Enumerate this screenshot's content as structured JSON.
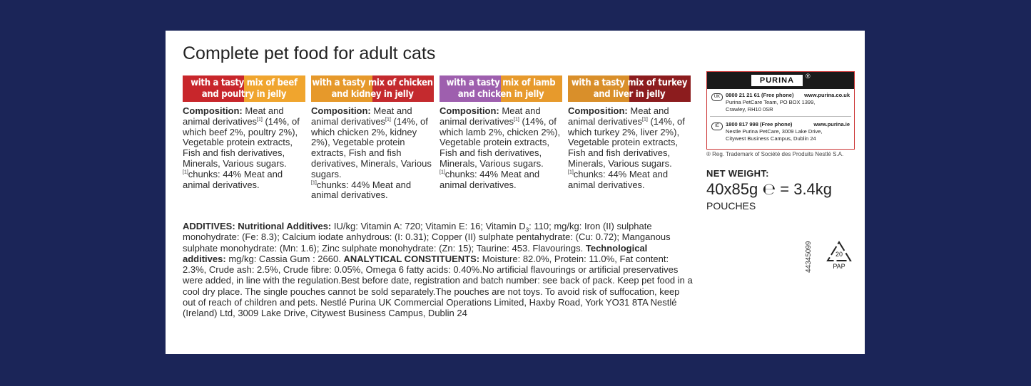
{
  "title": "Complete pet food for adult cats",
  "variants": [
    {
      "banner": [
        "with a tasty mix of beef",
        "and poultry in jelly"
      ],
      "label": "Composition:",
      "text": "Meat and animal derivatives",
      "note": "[1]",
      "detail": "(14%, of which beef 2%, poultry 2%), Vegetable protein extracts, Fish and fish derivatives, Minerals, Various sugars.",
      "chunks": "chunks: 44% Meat and animal derivatives."
    },
    {
      "banner": [
        "with a tasty mix of chicken",
        "and kidney in jelly"
      ],
      "label": "Composition:",
      "text": "Meat and animal derivatives",
      "note": "[1]",
      "detail": "(14%, of which chicken 2%, kidney 2%), Vegetable protein extracts, Fish and fish derivatives, Minerals, Various sugars.",
      "chunks": "chunks: 44% Meat and animal derivatives."
    },
    {
      "banner": [
        "with a tasty mix of lamb",
        "and chicken in jelly"
      ],
      "label": "Composition:",
      "text": "Meat and animal derivatives",
      "note": "[1]",
      "detail": "(14%, of which lamb 2%, chicken 2%), Vegetable protein extracts, Fish and fish derivatives, Minerals, Various sugars.",
      "chunks": "chunks: 44% Meat and animal derivatives."
    },
    {
      "banner": [
        "with a tasty mix of turkey",
        "and liver in jelly"
      ],
      "label": "Composition:",
      "text": "Meat and animal derivatives",
      "note": "[1]",
      "detail": "(14%, of which turkey 2%, liver 2%), Vegetable protein extracts, Fish and fish derivatives, Minerals, Various sugars.",
      "chunks": "chunks: 44% Meat and animal derivatives."
    }
  ],
  "additives": {
    "heading": "ADDITIVES:",
    "nutritional_label": "Nutritional Additives:",
    "nutritional_a": "IU/kg: Vitamin A: 720; Vitamin E: 16; Vitamin D",
    "sub": "3",
    "nutritional_b": ": 110; mg/kg: Iron (II) sulphate monohydrate: (Fe: 8.3); Calcium iodate anhydrous: (I: 0.31); Copper (II) sulphate pentahydrate: (Cu: 0.72); Manganous sulphate monohydrate: (Mn: 1.6); Zinc sulphate monohydrate: (Zn: 15); Taurine: 453. Flavourings.",
    "technological_label": "Technological additives:",
    "technological": "mg/kg: Cassia Gum : 2660.",
    "analytical_label": "ANALYTICAL CONSTITUENTS:",
    "analytical": "Moisture: 82.0%, Protein: 11.0%, Fat content: 2.3%, Crude ash: 2.5%, Crude fibre: 0.05%, Omega 6 fatty acids: 0.40%.No artificial flavourings or artificial preservatives were added, in line with the regulation.Best before date, registration and batch number: see back of pack. Keep pet food in a cool dry place. The single pouches cannot be sold separately.The pouches are not toys. To avoid risk of suffocation, keep out of reach of children and pets. Nestlé Purina UK Commercial Operations Limited, Haxby Road, York YO31 8TA Nestlé (Ireland) Ltd, 3009 Lake Drive, Citywest Business Campus, Dublin 24"
  },
  "contact": {
    "brand": "PURINA",
    "reg": "®",
    "uk": {
      "code": "UK",
      "phone": "0800 21 21 61 (Free phone)",
      "web": "www.purina.co.uk",
      "address": [
        "Purina PetCare Team, PO BOX 1399,",
        "Crawley, RH10 0SR"
      ]
    },
    "ie": {
      "code": "IE",
      "phone": "1800 817 998 (Free phone)",
      "web": "www.purina.ie",
      "address": [
        "Nestle Purina PetCare, 3009 Lake Drive,",
        "Citywest Business Campus, Dublin 24"
      ]
    },
    "trademark": "® Reg. Trademark of Société des Produits Nestlé S.A."
  },
  "net_weight": {
    "label": "NET WEIGHT:",
    "amount": "40x85g",
    "emark": "℮",
    "total": "= 3.4kg",
    "unit": "POUCHES"
  },
  "barcode_number": "44345099",
  "recycling": {
    "number": "20",
    "material": "PAP"
  }
}
